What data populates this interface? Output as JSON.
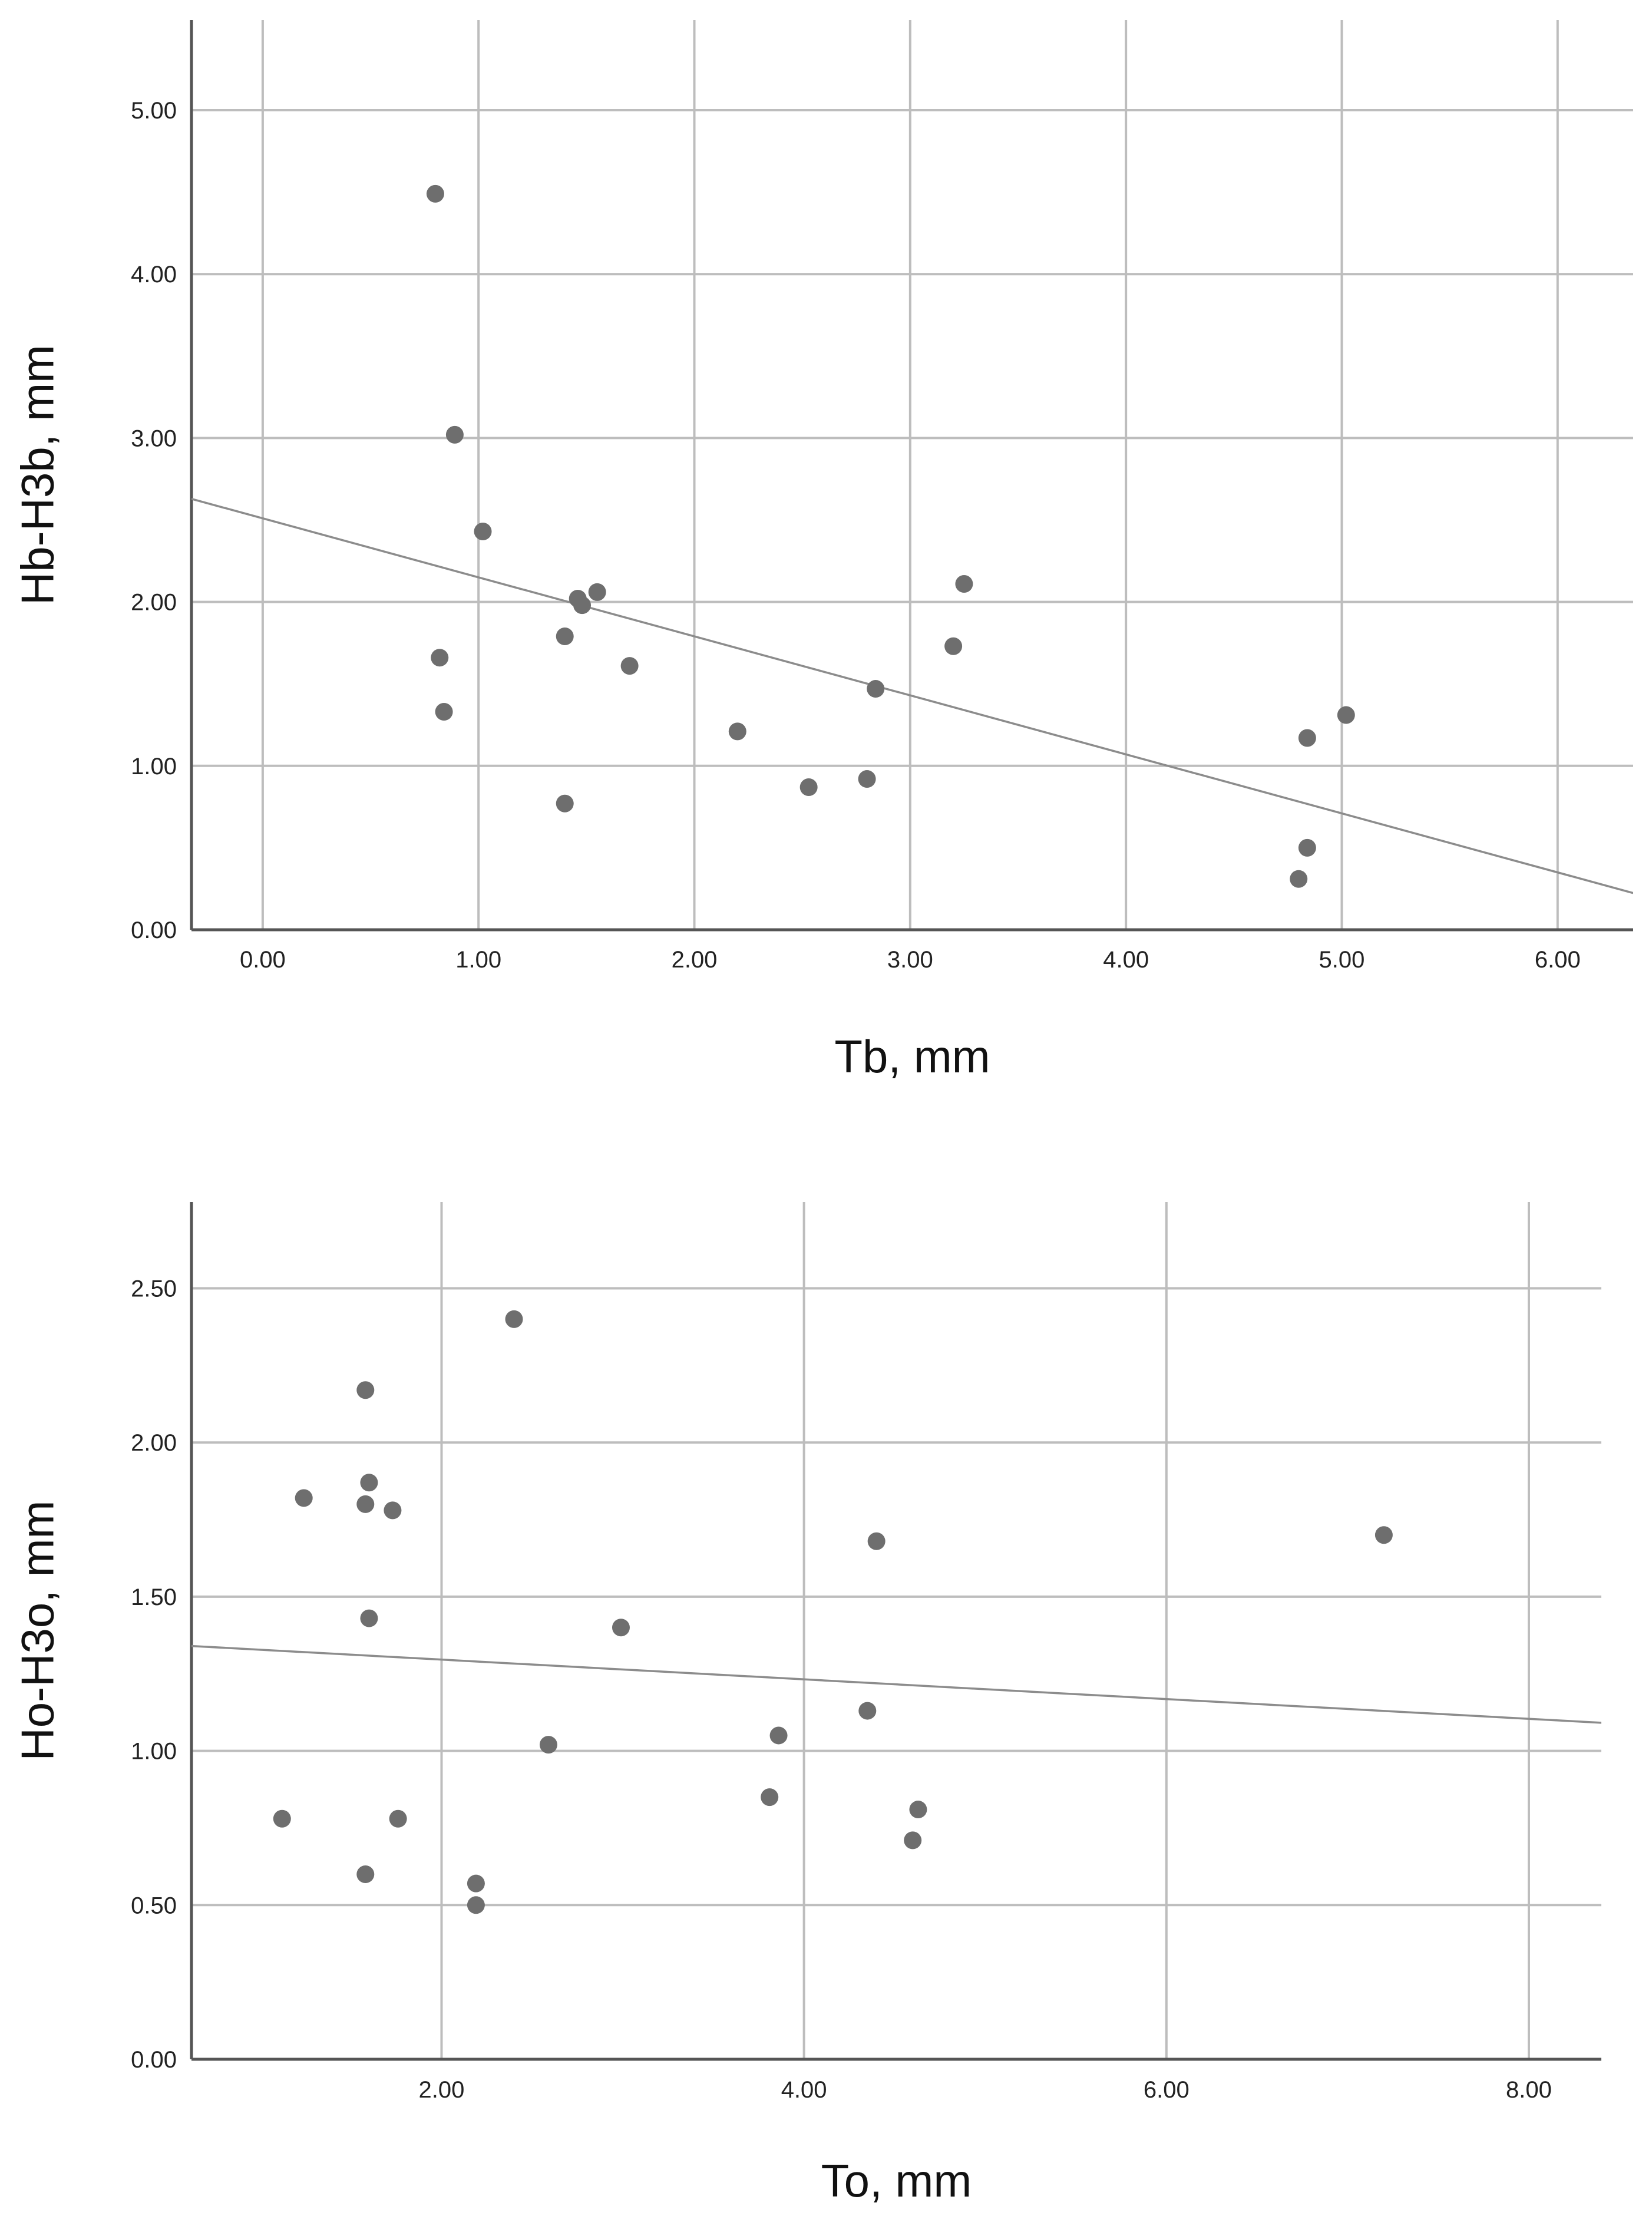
{
  "chart_data": [
    {
      "type": "scatter",
      "title": "",
      "xlabel": "Tb, mm",
      "ylabel": "Hb-H3b, mm",
      "xlim": [
        -0.33,
        6.35
      ],
      "ylim": [
        0,
        5.55
      ],
      "xticks": [
        0,
        1,
        2,
        3,
        4,
        5,
        6
      ],
      "yticks": [
        0,
        1,
        2,
        3,
        4,
        5
      ],
      "xtick_labels": [
        "0.00",
        "1.00",
        "2.00",
        "3.00",
        "4.00",
        "5.00",
        "6.00"
      ],
      "ytick_labels": [
        "0.00",
        "1.00",
        "2.00",
        "3.00",
        "4.00",
        "5.00"
      ],
      "grid": true,
      "fit_line": {
        "intercept": 2.51,
        "slope": -0.36
      },
      "points": [
        {
          "x": 0.8,
          "y": 4.49
        },
        {
          "x": 0.89,
          "y": 3.02
        },
        {
          "x": 1.02,
          "y": 2.43
        },
        {
          "x": 0.82,
          "y": 1.66
        },
        {
          "x": 0.84,
          "y": 1.33
        },
        {
          "x": 1.4,
          "y": 1.79
        },
        {
          "x": 1.4,
          "y": 0.77
        },
        {
          "x": 1.46,
          "y": 2.02
        },
        {
          "x": 1.48,
          "y": 1.98
        },
        {
          "x": 1.55,
          "y": 2.06
        },
        {
          "x": 1.7,
          "y": 1.61
        },
        {
          "x": 2.2,
          "y": 1.21
        },
        {
          "x": 2.53,
          "y": 0.87
        },
        {
          "x": 2.8,
          "y": 0.92
        },
        {
          "x": 2.84,
          "y": 1.47
        },
        {
          "x": 3.2,
          "y": 1.73
        },
        {
          "x": 3.25,
          "y": 2.11
        },
        {
          "x": 4.84,
          "y": 1.17
        },
        {
          "x": 4.84,
          "y": 0.5
        },
        {
          "x": 4.8,
          "y": 0.31
        },
        {
          "x": 5.02,
          "y": 1.31
        }
      ]
    },
    {
      "type": "scatter",
      "title": "",
      "xlabel": "To, mm",
      "ylabel": "Ho-H3o, mm",
      "xlim": [
        0.62,
        8.4
      ],
      "ylim": [
        0,
        2.78
      ],
      "xticks": [
        2,
        4,
        6,
        8
      ],
      "yticks": [
        0,
        0.5,
        1,
        1.5,
        2,
        2.5
      ],
      "xtick_labels": [
        "2.00",
        "4.00",
        "6.00",
        "8.00"
      ],
      "ytick_labels": [
        "0.00",
        "0.50",
        "1.00",
        "1.50",
        "2.00",
        "2.50"
      ],
      "grid": true,
      "fit_line": {
        "intercept": 1.36,
        "slope": -0.032
      },
      "points": [
        {
          "x": 1.12,
          "y": 0.78
        },
        {
          "x": 1.24,
          "y": 1.82
        },
        {
          "x": 1.58,
          "y": 2.17
        },
        {
          "x": 1.58,
          "y": 1.8
        },
        {
          "x": 1.6,
          "y": 1.87
        },
        {
          "x": 1.6,
          "y": 1.43
        },
        {
          "x": 1.58,
          "y": 0.6
        },
        {
          "x": 1.73,
          "y": 1.78
        },
        {
          "x": 1.76,
          "y": 0.78
        },
        {
          "x": 2.19,
          "y": 0.57
        },
        {
          "x": 2.19,
          "y": 0.5
        },
        {
          "x": 2.4,
          "y": 2.4
        },
        {
          "x": 2.59,
          "y": 1.02
        },
        {
          "x": 2.99,
          "y": 1.4
        },
        {
          "x": 3.81,
          "y": 0.85
        },
        {
          "x": 3.86,
          "y": 1.05
        },
        {
          "x": 4.35,
          "y": 1.13
        },
        {
          "x": 4.4,
          "y": 1.68
        },
        {
          "x": 4.6,
          "y": 0.71
        },
        {
          "x": 4.63,
          "y": 0.81
        },
        {
          "x": 7.2,
          "y": 1.7
        }
      ]
    }
  ]
}
